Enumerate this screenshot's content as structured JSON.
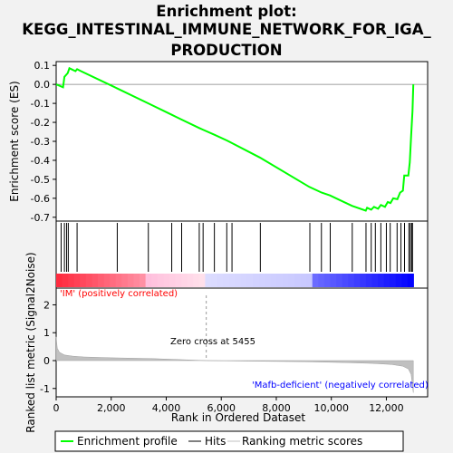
{
  "chart_data": {
    "type": "line",
    "title_lines": [
      "Enrichment plot:",
      "KEGG_INTESTINAL_IMMUNE_NETWORK_FOR_IGA_",
      "PRODUCTION"
    ],
    "top_panel": {
      "ylabel": "Enrichment score (ES)",
      "ylim": [
        -0.72,
        0.12
      ],
      "yticks": [
        0.1,
        0.0,
        -0.1,
        -0.2,
        -0.3,
        -0.4,
        -0.5,
        -0.6,
        -0.7
      ],
      "ytick_labels": [
        "0.1",
        "0.0",
        "-0.1",
        "-0.2",
        "-0.3",
        "-0.4",
        "-0.5",
        "-0.6",
        "-0.7"
      ],
      "es_curve": [
        [
          0,
          0.0
        ],
        [
          250,
          -0.015
        ],
        [
          300,
          0.04
        ],
        [
          420,
          0.06
        ],
        [
          480,
          0.085
        ],
        [
          700,
          0.07
        ],
        [
          760,
          0.08
        ],
        [
          900,
          0.07
        ],
        [
          2200,
          -0.02
        ],
        [
          3350,
          -0.1
        ],
        [
          4200,
          -0.16
        ],
        [
          4550,
          -0.185
        ],
        [
          5200,
          -0.23
        ],
        [
          5350,
          -0.24
        ],
        [
          5750,
          -0.265
        ],
        [
          6200,
          -0.295
        ],
        [
          6400,
          -0.31
        ],
        [
          7400,
          -0.385
        ],
        [
          9200,
          -0.54
        ],
        [
          9650,
          -0.57
        ],
        [
          9950,
          -0.585
        ],
        [
          10750,
          -0.64
        ],
        [
          11250,
          -0.665
        ],
        [
          11300,
          -0.65
        ],
        [
          11450,
          -0.66
        ],
        [
          11550,
          -0.645
        ],
        [
          11700,
          -0.655
        ],
        [
          11800,
          -0.635
        ],
        [
          11950,
          -0.645
        ],
        [
          12050,
          -0.62
        ],
        [
          12150,
          -0.625
        ],
        [
          12250,
          -0.6
        ],
        [
          12400,
          -0.605
        ],
        [
          12500,
          -0.57
        ],
        [
          12600,
          -0.56
        ],
        [
          12650,
          -0.48
        ],
        [
          12800,
          -0.48
        ],
        [
          12850,
          -0.41
        ],
        [
          12900,
          -0.27
        ],
        [
          12950,
          -0.14
        ],
        [
          12980,
          0.0
        ]
      ]
    },
    "hits": [
      180,
      300,
      380,
      440,
      760,
      2220,
      3350,
      4200,
      4560,
      5200,
      5340,
      5750,
      6200,
      6390,
      7420,
      9220,
      9640,
      9960,
      10760,
      11260,
      11450,
      11600,
      11800,
      12000,
      12140,
      12390,
      12530,
      12660,
      12820,
      12870,
      12920,
      12950
    ],
    "bottom_panel": {
      "ylabel": "Ranked list metric (Signal2Noise)",
      "xlabel": "Rank in Ordered Dataset",
      "xlim": [
        0,
        13500
      ],
      "ylim": [
        -1.3,
        2.6
      ],
      "yticks": [
        2,
        1,
        0,
        -1
      ],
      "ytick_labels": [
        "2",
        "1",
        "0",
        "-1"
      ],
      "xticks": [
        0,
        2000,
        4000,
        6000,
        8000,
        10000,
        12000
      ],
      "xtick_labels": [
        "0",
        "2,000",
        "4,000",
        "6,000",
        "8,000",
        "10,000",
        "12,000"
      ],
      "metric_curve": [
        [
          0,
          0.85
        ],
        [
          40,
          0.45
        ],
        [
          120,
          0.3
        ],
        [
          300,
          0.2
        ],
        [
          600,
          0.16
        ],
        [
          1000,
          0.13
        ],
        [
          2000,
          0.1
        ],
        [
          3500,
          0.07
        ],
        [
          5455,
          0.0
        ],
        [
          7000,
          -0.02
        ],
        [
          9000,
          -0.04
        ],
        [
          10500,
          -0.07
        ],
        [
          11500,
          -0.1
        ],
        [
          12200,
          -0.14
        ],
        [
          12600,
          -0.2
        ],
        [
          12800,
          -0.3
        ],
        [
          12900,
          -0.5
        ],
        [
          12980,
          -1.15
        ]
      ],
      "zero_cross_label": "Zero cross at 5455",
      "zero_cross_rank": 5455,
      "pos_label": "'IM' (positively correlated)",
      "neg_label": "'Mafb-deficient' (negatively correlated)"
    },
    "n_genes": 12990,
    "legend": [
      {
        "name": "Enrichment profile",
        "color": "#00ff00"
      },
      {
        "name": "Hits",
        "color": "#000000"
      },
      {
        "name": "Ranking metric scores",
        "color": "#c0c0c0"
      }
    ],
    "colors": {
      "es": "#00ff00",
      "pos_label": "#ff0000",
      "neg_label": "#0000ff"
    }
  }
}
